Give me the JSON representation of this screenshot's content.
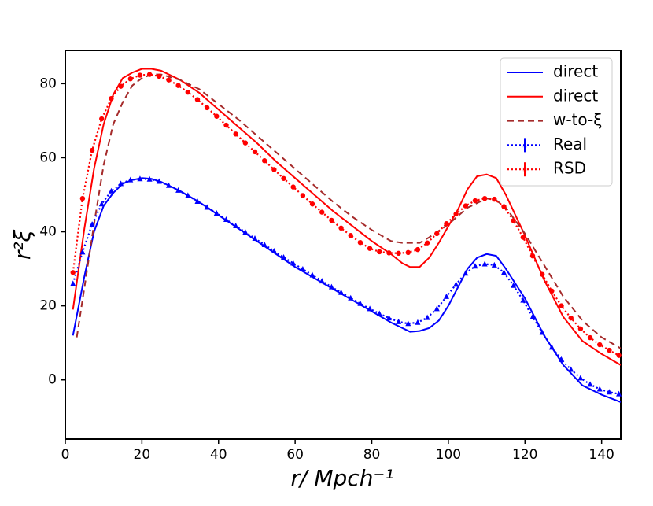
{
  "chart_data": {
    "type": "line",
    "x_label": "r/   Mpch⁻¹",
    "y_label": "r²ξ",
    "xlim": [
      0,
      145
    ],
    "ylim": [
      -16,
      89
    ],
    "xticks": [
      0,
      20,
      40,
      60,
      80,
      100,
      120,
      140
    ],
    "yticks": [
      0,
      20,
      40,
      60,
      80
    ],
    "legend": "upper right",
    "series": [
      {
        "name": "direct",
        "color": "#0000ff",
        "style": "solid",
        "marker": "none",
        "x": [
          2,
          5,
          7.5,
          10,
          12.5,
          15,
          17.5,
          20,
          22.5,
          25,
          30,
          35,
          40,
          45,
          50,
          55,
          60,
          65,
          70,
          75,
          80,
          85,
          90,
          92.5,
          95,
          97.5,
          100,
          102.5,
          105,
          107.5,
          110,
          112.5,
          115,
          120,
          125,
          130,
          135,
          140,
          145
        ],
        "values": [
          12,
          28,
          40,
          47,
          50.5,
          53,
          54,
          54.5,
          54.3,
          53.5,
          51,
          48,
          44.5,
          41,
          37.5,
          34,
          30.5,
          27.5,
          24.5,
          21.5,
          18.5,
          15.5,
          13,
          13.2,
          14,
          16,
          20,
          25,
          30,
          33,
          34,
          33.5,
          30,
          22,
          12,
          4,
          -1.5,
          -4,
          -6
        ]
      },
      {
        "name": "direct",
        "color": "#ff0000",
        "style": "solid",
        "marker": "none",
        "x": [
          2,
          5,
          7.5,
          10,
          12.5,
          15,
          17.5,
          20,
          22.5,
          25,
          30,
          35,
          40,
          45,
          50,
          55,
          60,
          65,
          70,
          75,
          80,
          85,
          88,
          90,
          92.5,
          95,
          97.5,
          100,
          102.5,
          105,
          107.5,
          110,
          112.5,
          115,
          120,
          125,
          130,
          135,
          140,
          145
        ],
        "values": [
          19,
          41,
          57,
          69,
          77,
          81.5,
          83,
          84,
          84,
          83.5,
          81,
          77.5,
          73,
          68.5,
          64,
          59,
          54.5,
          50,
          45.5,
          41.5,
          37.5,
          34,
          31.5,
          30.5,
          30.5,
          33,
          37,
          41.5,
          46,
          51.5,
          55,
          55.5,
          54.5,
          50,
          39,
          27,
          17,
          10.5,
          7,
          4
        ]
      },
      {
        "name": "w-to-ξ",
        "color": "#a52a2a",
        "style": "dashed",
        "marker": "none",
        "x": [
          3,
          5,
          7.5,
          10,
          12.5,
          15,
          17.5,
          20,
          22.5,
          25,
          30,
          35,
          40,
          45,
          50,
          55,
          60,
          65,
          70,
          75,
          80,
          85,
          88,
          92.5,
          95,
          100,
          105,
          110,
          112.5,
          115,
          120,
          125,
          130,
          135,
          140,
          145
        ],
        "values": [
          11.5,
          25,
          42,
          58,
          69,
          75,
          79.5,
          81.5,
          82.5,
          82.5,
          81,
          78.5,
          74.5,
          70.5,
          66,
          61.5,
          57,
          52.5,
          48,
          44,
          40.5,
          37.5,
          37,
          37,
          38.5,
          42,
          46.5,
          49,
          48.5,
          46.5,
          39.5,
          31,
          22.5,
          16,
          11.5,
          8.5
        ]
      },
      {
        "name": "Real",
        "color": "#0000ff",
        "style": "dotted",
        "marker": "triangle",
        "x": [
          2,
          4.5,
          7,
          9.5,
          12,
          14.5,
          17,
          19.5,
          22,
          24.5,
          27,
          29.5,
          32,
          34.5,
          37,
          39.5,
          42,
          44.5,
          47,
          49.5,
          52,
          54.5,
          57,
          59.5,
          62,
          64.5,
          67,
          69.5,
          72,
          74.5,
          77,
          79.5,
          82,
          84.5,
          87,
          89.5,
          92,
          94.5,
          97,
          99.5,
          102,
          104.5,
          107,
          109.5,
          112,
          114.5,
          117,
          119.5,
          122,
          124.5,
          127,
          129.5,
          132,
          134.5,
          137,
          139.5,
          142,
          144.5
        ],
        "values": [
          26,
          34.5,
          42,
          47.5,
          51,
          53,
          54,
          54.3,
          54.2,
          53.6,
          52.5,
          51.2,
          49.8,
          48.2,
          46.6,
          45,
          43.3,
          41.6,
          39.9,
          38.2,
          36.5,
          34.8,
          33.1,
          31.5,
          29.9,
          28.3,
          26.7,
          25.1,
          23.6,
          22.1,
          20.6,
          19.2,
          17.9,
          16.7,
          15.7,
          15.2,
          15.5,
          16.8,
          19.2,
          22.5,
          25.8,
          28.8,
          30.7,
          31.3,
          31,
          29,
          25.5,
          21.5,
          17,
          12.8,
          8.8,
          5.5,
          2.8,
          0.5,
          -1.2,
          -2.5,
          -3.3,
          -3.8
        ]
      },
      {
        "name": "RSD",
        "color": "#ff0000",
        "style": "dotted",
        "marker": "circle",
        "x": [
          2,
          4.5,
          7,
          9.5,
          12,
          14.5,
          17,
          19.5,
          22,
          24.5,
          27,
          29.5,
          32,
          34.5,
          37,
          39.5,
          42,
          44.5,
          47,
          49.5,
          52,
          54.5,
          57,
          59.5,
          62,
          64.5,
          67,
          69.5,
          72,
          74.5,
          77,
          79.5,
          82,
          84.5,
          87,
          89.5,
          92,
          94.5,
          97,
          99.5,
          102,
          104.5,
          107,
          109.5,
          112,
          114.5,
          117,
          119.5,
          122,
          124.5,
          127,
          129.5,
          132,
          134.5,
          137,
          139.5,
          142,
          144.5
        ],
        "values": [
          29,
          49,
          62,
          70.5,
          76,
          79.3,
          81.3,
          82.3,
          82.5,
          82,
          81,
          79.5,
          77.7,
          75.7,
          73.5,
          71.2,
          68.8,
          66.4,
          64,
          61.6,
          59.2,
          56.8,
          54.4,
          52.1,
          49.8,
          47.5,
          45.3,
          43.1,
          41,
          39,
          37.1,
          35.5,
          34.6,
          34.3,
          34.2,
          34.4,
          35.2,
          37,
          39.5,
          42.2,
          44.8,
          47,
          48.4,
          49,
          48.8,
          46.8,
          43,
          38.5,
          33.5,
          28.5,
          24,
          20,
          16.7,
          13.8,
          11.4,
          9.5,
          8,
          6.6
        ]
      }
    ]
  }
}
